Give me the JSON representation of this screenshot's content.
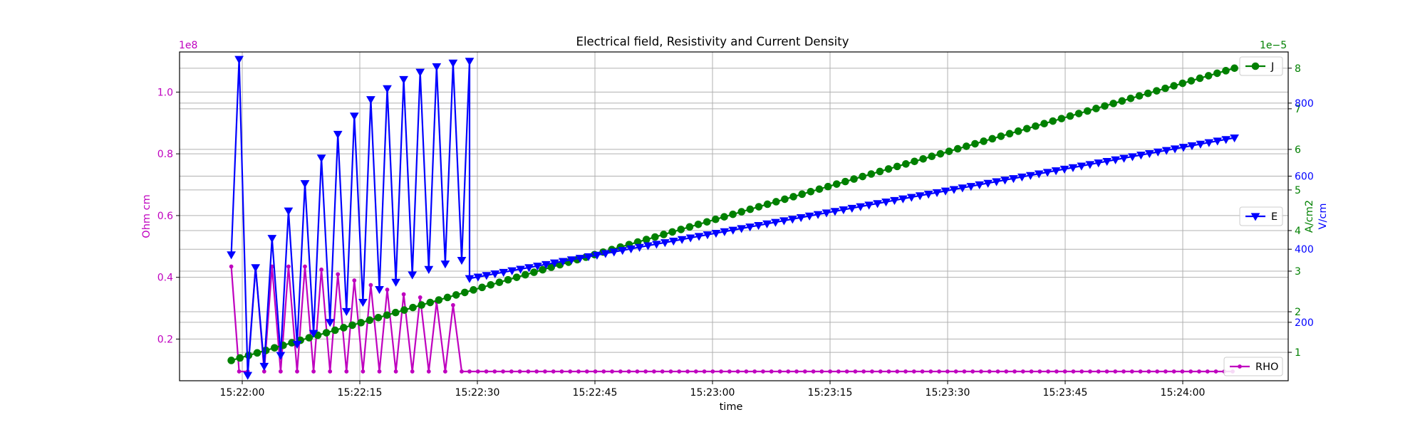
{
  "chart_data": {
    "type": "line",
    "title": "Electrical field, Resistivity and Current Density",
    "xlabel": "time",
    "x_ticks": [
      "15:22:00",
      "15:22:15",
      "15:22:30",
      "15:22:45",
      "15:23:00",
      "15:23:15",
      "15:23:30",
      "15:23:45",
      "15:24:00"
    ],
    "grid": true,
    "colors": {
      "RHO": "#bf00bf",
      "J": "#008000",
      "E": "#0000ff"
    },
    "axes": {
      "rho": {
        "label": "Ohm cm",
        "offset_text": "1e8",
        "ticks": [
          "0.2",
          "0.4",
          "0.6",
          "0.8",
          "1.0"
        ],
        "ylim": [
          0.065,
          1.13
        ],
        "side": "left",
        "color": "#bf00bf"
      },
      "j": {
        "label": "A/cm2",
        "offset_text": "1e−5",
        "ticks": [
          "1",
          "2",
          "3",
          "4",
          "5",
          "6",
          "7",
          "8"
        ],
        "ylim": [
          0.3,
          8.4
        ],
        "side": "right",
        "color": "#008000"
      },
      "e": {
        "label": "V/cm",
        "ticks": [
          "200",
          "400",
          "600",
          "800"
        ],
        "ylim": [
          40,
          940
        ],
        "side": "right",
        "color": "#0000ff"
      }
    },
    "series": [
      {
        "name": "RHO",
        "axis": "rho",
        "marker": "dot",
        "times": [
          "15:21:58.6",
          "15:21:59.6",
          "15:22:00.7",
          "15:22:01.7",
          "15:22:02.8",
          "15:22:03.8",
          "15:22:04.9",
          "15:22:05.9",
          "15:22:07.0",
          "15:22:08.0",
          "15:22:09.1",
          "15:22:10.1",
          "15:22:11.2",
          "15:22:12.2",
          "15:22:13.3",
          "15:22:14.3",
          "15:22:15.4",
          "15:22:16.4",
          "15:22:17.5",
          "15:22:18.5",
          "15:22:19.6",
          "15:22:20.6",
          "15:22:21.7",
          "15:22:22.7",
          "15:22:23.8",
          "15:22:24.8",
          "15:22:25.9",
          "15:22:26.9",
          "15:22:28.0",
          "15:22:29.0"
        ],
        "values": [
          0.435,
          0.095,
          0.095,
          0.435,
          0.095,
          0.435,
          0.095,
          0.435,
          0.095,
          0.435,
          0.095,
          0.425,
          0.095,
          0.41,
          0.095,
          0.39,
          0.095,
          0.375,
          0.095,
          0.36,
          0.095,
          0.345,
          0.095,
          0.335,
          0.095,
          0.32,
          0.095,
          0.31,
          0.095,
          0.095
        ],
        "flat_tail": {
          "from": "15:22:29.0",
          "to": "15:24:06.6",
          "value": 0.095
        }
      },
      {
        "name": "J",
        "axis": "j",
        "marker": "circle",
        "linear": {
          "from_time": "15:21:58.6",
          "from_value": 0.8,
          "to_time": "15:24:06.6",
          "to_value": 8.0,
          "points": 117
        }
      },
      {
        "name": "E",
        "axis": "e",
        "marker": "triangle-down",
        "times": [
          "15:21:58.6",
          "15:21:59.6",
          "15:22:00.7",
          "15:22:01.7",
          "15:22:02.8",
          "15:22:03.8",
          "15:22:04.9",
          "15:22:05.9",
          "15:22:07.0",
          "15:22:08.0",
          "15:22:09.1",
          "15:22:10.1",
          "15:22:11.2",
          "15:22:12.2",
          "15:22:13.3",
          "15:22:14.3",
          "15:22:15.4",
          "15:22:16.4",
          "15:22:17.5",
          "15:22:18.5",
          "15:22:19.6",
          "15:22:20.6",
          "15:22:21.7",
          "15:22:22.7",
          "15:22:23.8",
          "15:22:24.8",
          "15:22:25.9",
          "15:22:26.9",
          "15:22:28.0",
          "15:22:29.0"
        ],
        "values": [
          385,
          920,
          55,
          350,
          80,
          430,
          110,
          505,
          140,
          580,
          170,
          650,
          200,
          715,
          230,
          765,
          255,
          810,
          290,
          840,
          310,
          865,
          330,
          885,
          345,
          900,
          360,
          910,
          370,
          915
        ],
        "linear_tail": {
          "from_time": "15:22:29.0",
          "from_value": 320,
          "to_time": "15:24:06.6",
          "to_value": 705,
          "points": 91
        }
      }
    ],
    "legend": [
      {
        "name": "J",
        "position": "upper right"
      },
      {
        "name": "E",
        "position": "center right"
      },
      {
        "name": "RHO",
        "position": "lower right"
      }
    ]
  }
}
